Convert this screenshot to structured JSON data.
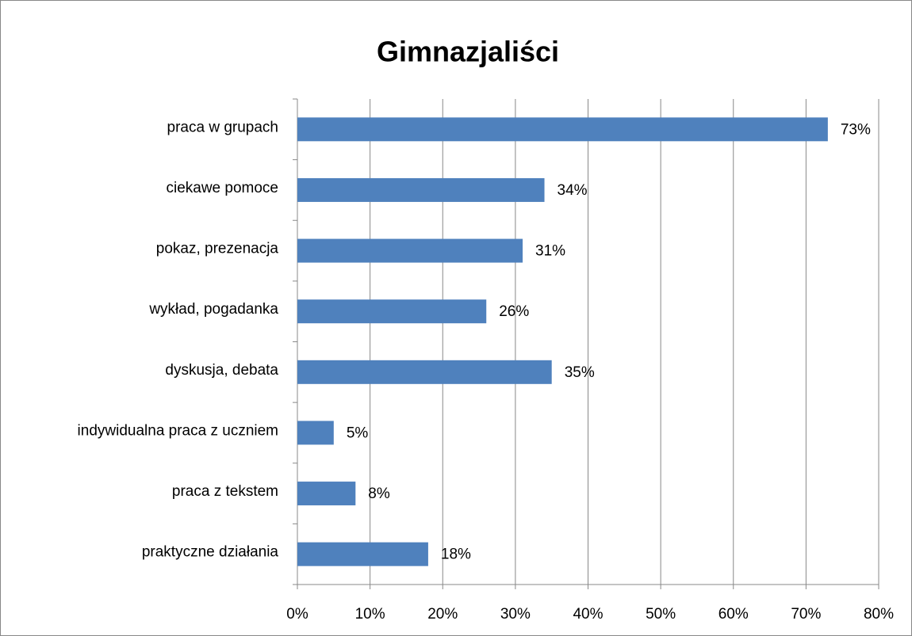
{
  "chart_data": {
    "type": "bar",
    "orientation": "horizontal",
    "title": "Gimnazjaliści",
    "categories": [
      "praca w grupach",
      "ciekawe pomoce",
      "pokaz, prezenacja",
      "wykład, pogadanka",
      "dyskusja, debata",
      "indywidualna praca z uczniem",
      "praca z tekstem",
      "praktyczne działania"
    ],
    "values": [
      73,
      34,
      31,
      26,
      35,
      5,
      8,
      18
    ],
    "value_labels": [
      "73%",
      "34%",
      "31%",
      "26%",
      "35%",
      "5%",
      "8%",
      "18%"
    ],
    "color": "#4f81bd",
    "xlim": [
      0,
      80
    ],
    "xticks": [
      {
        "value": 0,
        "label": "0%"
      },
      {
        "value": 10,
        "label": "10%"
      },
      {
        "value": 20,
        "label": "20%"
      },
      {
        "value": 30,
        "label": "30%"
      },
      {
        "value": 40,
        "label": "40%"
      },
      {
        "value": 50,
        "label": "50%"
      },
      {
        "value": 60,
        "label": "60%"
      },
      {
        "value": 70,
        "label": "70%"
      },
      {
        "value": 80,
        "label": "80%"
      }
    ],
    "grid": true
  }
}
